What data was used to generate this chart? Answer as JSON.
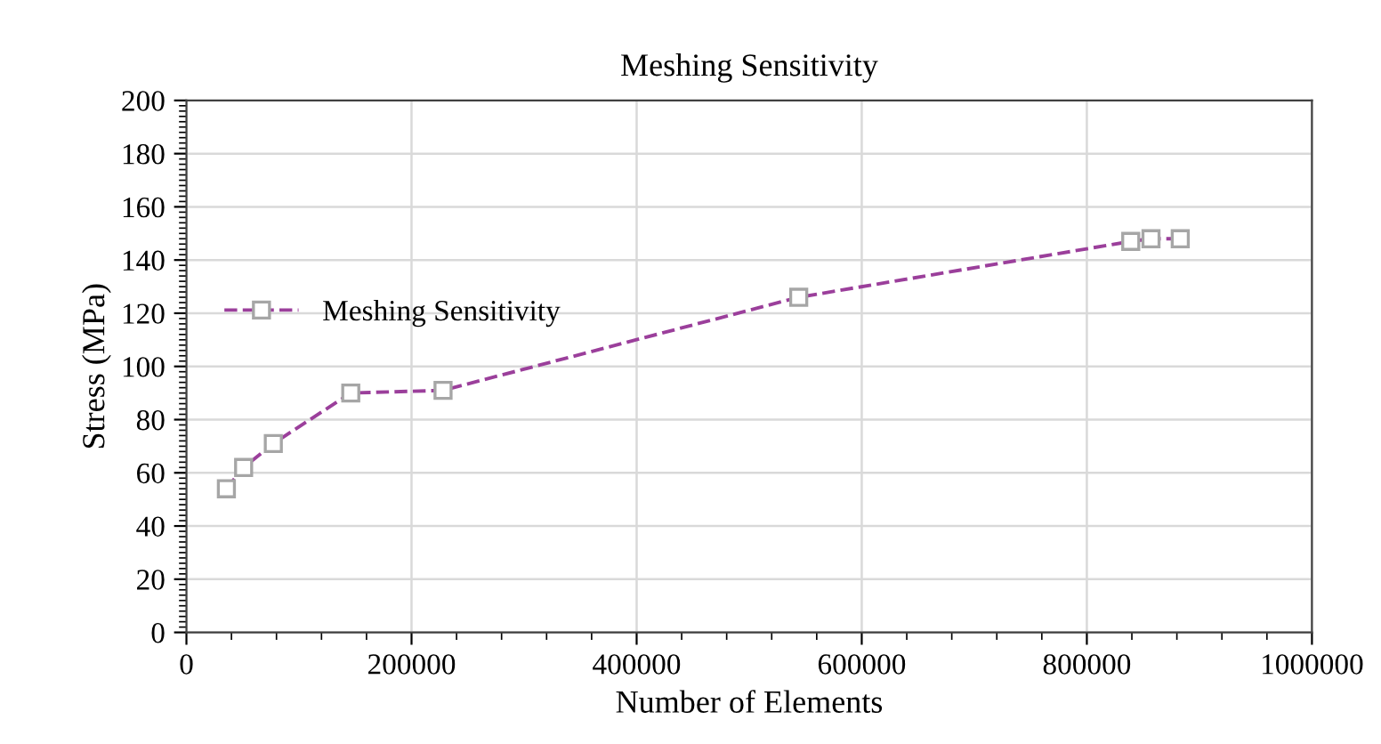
{
  "chart_data": {
    "type": "line",
    "title": "Meshing Sensitivity",
    "xlabel": "Number of Elements",
    "ylabel": "Stress (MPa)",
    "series": [
      {
        "name": "Meshing Sensitivity",
        "color": "#9b3f9b",
        "x": [
          35500,
          50800,
          77200,
          146000,
          228000,
          544000,
          839000,
          857000,
          883000
        ],
        "values": [
          54,
          62,
          71,
          90,
          91,
          126,
          147,
          148,
          148
        ]
      }
    ],
    "xlim": [
      0,
      1000000
    ],
    "xticks": [
      0,
      200000,
      400000,
      600000,
      800000,
      1000000
    ],
    "ylim": [
      0,
      200
    ],
    "yticks": [
      0,
      20,
      40,
      60,
      80,
      100,
      120,
      140,
      160,
      180,
      200
    ],
    "grid": true,
    "legend": "left",
    "marker": "square",
    "line_style": "dashed"
  }
}
